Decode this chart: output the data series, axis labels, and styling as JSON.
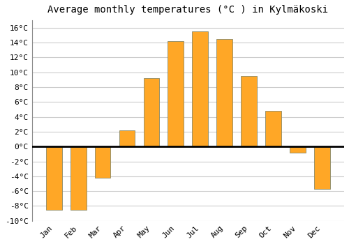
{
  "title": "Average monthly temperatures (°C ) in Kylmäkoski",
  "months": [
    "Jan",
    "Feb",
    "Mar",
    "Apr",
    "May",
    "Jun",
    "Jul",
    "Aug",
    "Sep",
    "Oct",
    "Nov",
    "Dec"
  ],
  "values": [
    -8.5,
    -8.5,
    -4.2,
    2.2,
    9.2,
    14.2,
    15.5,
    14.5,
    9.5,
    4.8,
    -0.8,
    -5.7
  ],
  "bar_color": "#FFA726",
  "bar_edge_color": "#888866",
  "ylim": [
    -10,
    17
  ],
  "yticks": [
    -10,
    -8,
    -6,
    -4,
    -2,
    0,
    2,
    4,
    6,
    8,
    10,
    12,
    14,
    16
  ],
  "background_color": "#ffffff",
  "grid_color": "#cccccc",
  "zero_line_color": "#000000",
  "title_fontsize": 10,
  "tick_fontsize": 8,
  "bar_width": 0.65
}
